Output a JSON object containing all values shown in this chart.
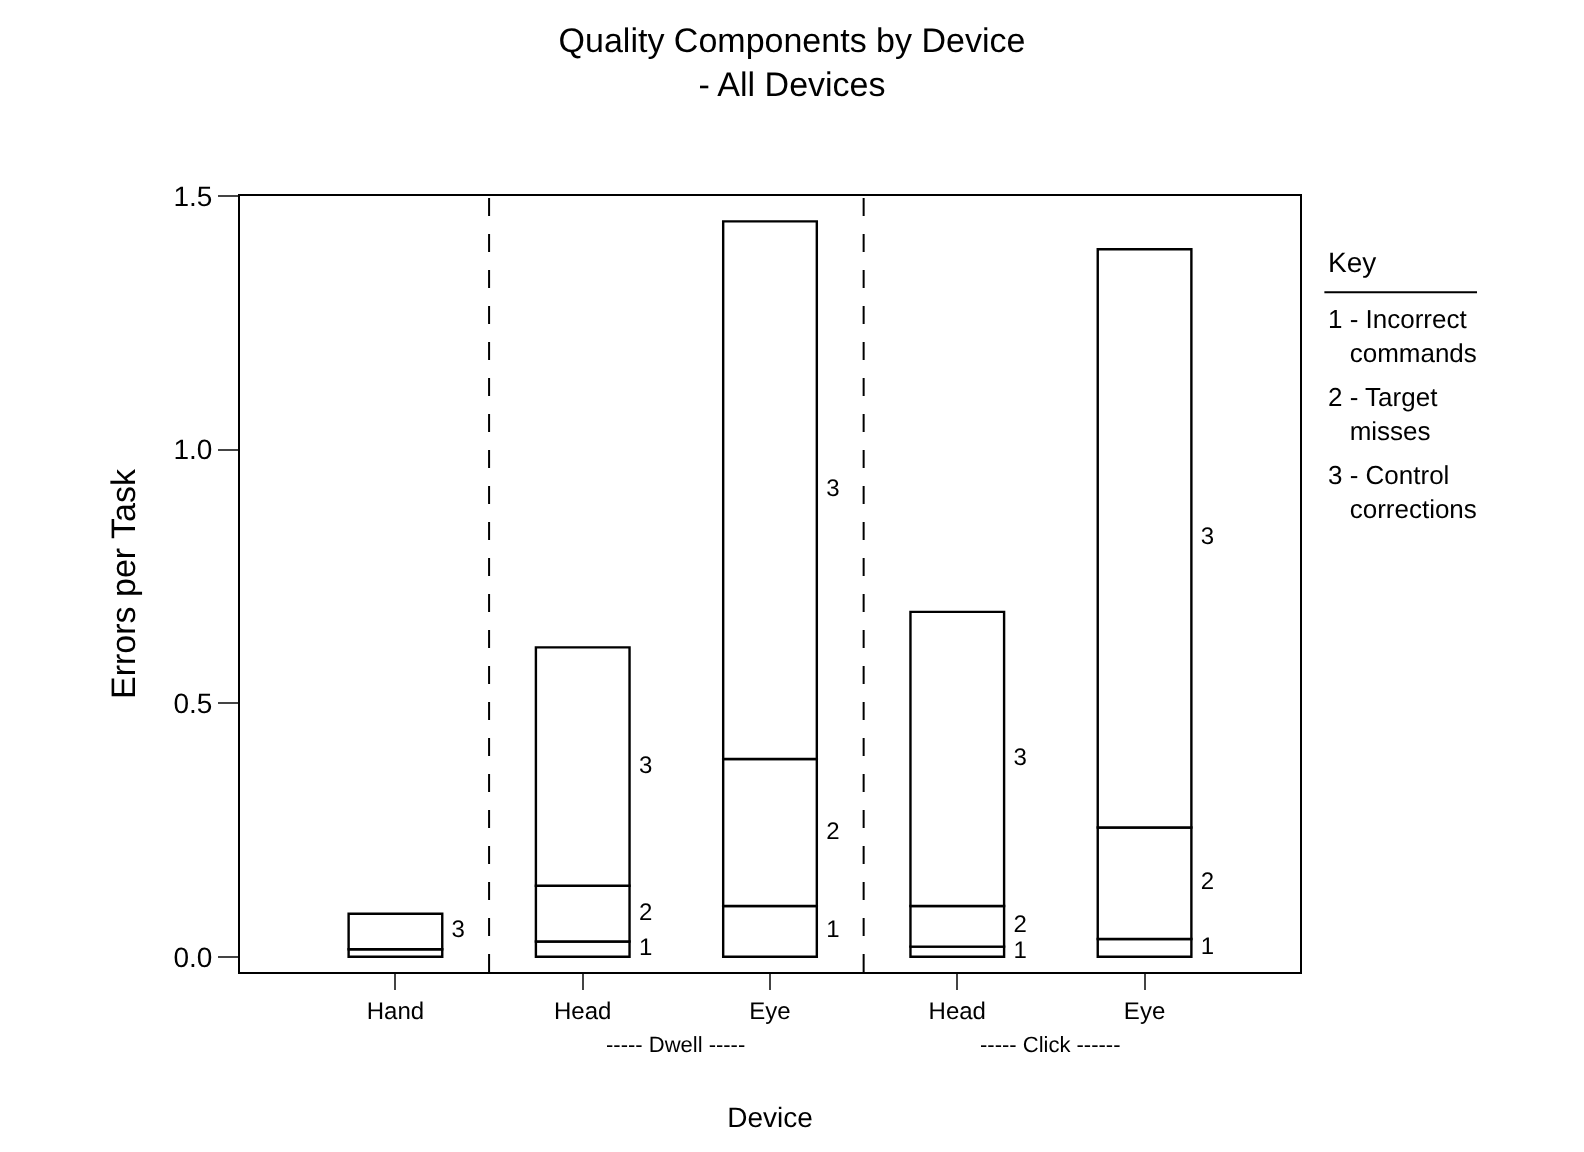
{
  "chart_data": {
    "type": "bar",
    "stacked": true,
    "title": "Quality Components by Device",
    "subtitle": "- All Devices",
    "xlabel": "Device",
    "ylabel": "Errors per Task",
    "categories": [
      "Hand",
      "Head",
      "Eye",
      "Head",
      "Eye"
    ],
    "series": [
      {
        "name": "1",
        "color": "#ffffff",
        "values": [
          null,
          0.03,
          0.1,
          0.02,
          0.035
        ]
      },
      {
        "name": "2",
        "color": "#ffffff",
        "values": [
          0.015,
          0.11,
          0.29,
          0.08,
          0.22
        ]
      },
      {
        "name": "3",
        "color": "#ffffff",
        "values": [
          0.07,
          0.47,
          1.06,
          0.58,
          1.14
        ]
      }
    ],
    "ylim": [
      -0.03,
      1.5
    ],
    "yticks": [
      {
        "value": 0,
        "label": "0.0"
      },
      {
        "value": 0.5,
        "label": "0.5"
      },
      {
        "value": 1,
        "label": "1.0"
      },
      {
        "value": 1.5,
        "label": "1.5"
      }
    ],
    "annotations": [
      "----- Dwell -----",
      "----- Click ------",
      "Key",
      "1 - Incorrect commands",
      "2 - Target misses",
      "3 - Control corrections"
    ]
  }
}
